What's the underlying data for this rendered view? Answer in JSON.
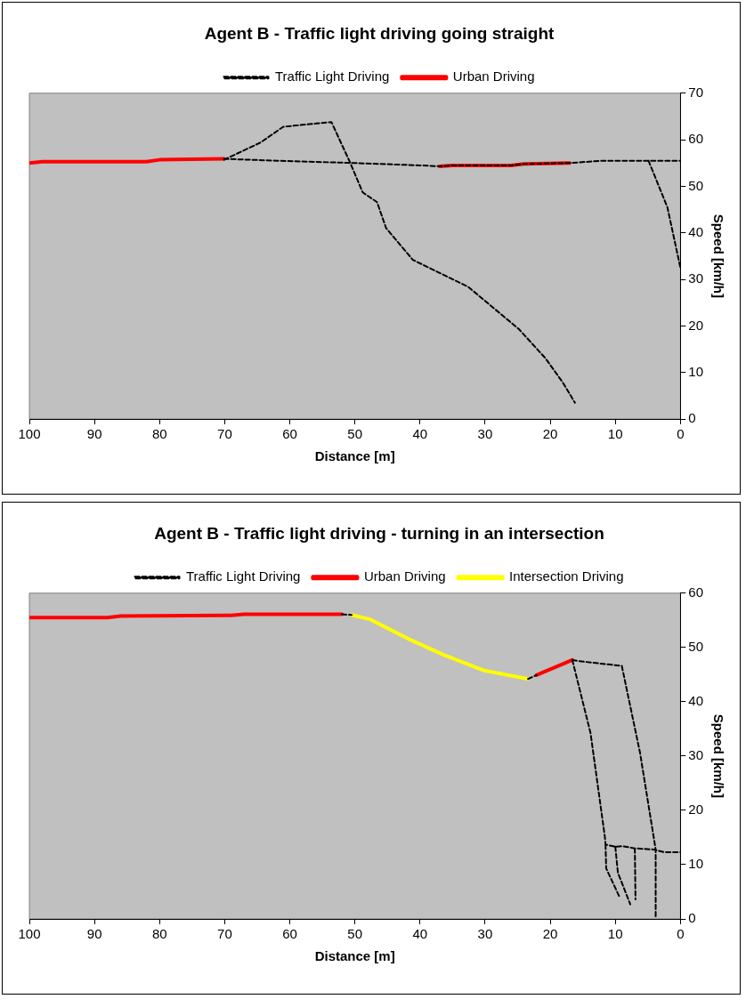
{
  "chart_data": [
    {
      "type": "line",
      "title": "Agent B - Traffic light driving going straight",
      "xlabel": "Distance [m]",
      "ylabel": "Speed [km/h]",
      "legend": "top",
      "marker": "none",
      "xlim": [
        100,
        0
      ],
      "xticks": [
        100,
        90,
        80,
        70,
        60,
        50,
        40,
        30,
        20,
        10,
        0
      ],
      "ylim": [
        0,
        70
      ],
      "yticks": [
        0,
        10,
        20,
        30,
        40,
        50,
        60,
        70
      ],
      "series": [
        {
          "name": "Traffic Light Driving",
          "color": "#000000",
          "line_style": "dashed",
          "x": [
            70.1,
            62,
            50,
            40,
            37,
            35,
            26,
            24,
            17,
            12,
            0,
            null,
            70.1,
            64.5,
            61,
            53.6,
            50.8,
            48.8,
            46.6,
            45.2,
            41.1,
            32.6,
            24.8,
            20.7,
            18,
            16.2,
            null,
            4.9,
            2,
            0
          ],
          "values": [
            55.9,
            55.5,
            55,
            54.5,
            54.3,
            54.5,
            54.5,
            54.8,
            55,
            55.5,
            55.5,
            null,
            55.7,
            59.4,
            62.8,
            63.8,
            55.3,
            48.7,
            46.6,
            41,
            34.2,
            28.4,
            19.3,
            13,
            7.7,
            3.5,
            null,
            55.5,
            45.5,
            32.5
          ]
        },
        {
          "name": "Urban Driving",
          "color": "#ff0000",
          "line_style": "solid",
          "x": [
            100,
            98,
            82,
            80,
            70.1,
            null,
            37,
            35,
            26,
            24,
            17
          ],
          "values": [
            55,
            55.3,
            55.3,
            55.7,
            55.9,
            null,
            54.3,
            54.5,
            54.5,
            54.8,
            55
          ]
        }
      ]
    },
    {
      "type": "line",
      "title": "Agent B - Traffic light driving - turning in an intersection",
      "xlabel": "Distance [m]",
      "ylabel": "Speed [km/h]",
      "legend": "top",
      "marker": "none",
      "xlim": [
        100,
        0
      ],
      "xticks": [
        100,
        90,
        80,
        70,
        60,
        50,
        40,
        30,
        20,
        10,
        0
      ],
      "ylim": [
        0,
        60
      ],
      "yticks": [
        0,
        10,
        20,
        30,
        40,
        50,
        60
      ],
      "series": [
        {
          "name": "Traffic Light Driving",
          "color": "#000000",
          "line_style": "dashed",
          "x": [
            52,
            50.5,
            null,
            23.4,
            22.1,
            null,
            16.6,
            15.7,
            9,
            6.2,
            3.8,
            3.8,
            null,
            16.6,
            13.8,
            11.6,
            11.5,
            10,
            8.9,
            7,
            4.2,
            2.5,
            0,
            null,
            11.5,
            11.4,
            9.3,
            null,
            10,
            9.6,
            7.7,
            null,
            7,
            6.9
          ],
          "values": [
            56.1,
            56,
            null,
            44.2,
            44.9,
            null,
            47.7,
            47.5,
            46.6,
            30.6,
            12.8,
            0,
            null,
            47.7,
            34.2,
            15.1,
            13.7,
            13.3,
            13.4,
            13,
            12.8,
            12.3,
            12.3,
            null,
            13.7,
            9.3,
            3.9,
            null,
            13.3,
            8.5,
            2.7,
            null,
            13,
            3.6
          ]
        },
        {
          "name": "Urban Driving",
          "color": "#ff0000",
          "line_style": "solid",
          "x": [
            100,
            88,
            86,
            69,
            67,
            52,
            null,
            22.1,
            16.6
          ],
          "values": [
            55.5,
            55.5,
            55.8,
            55.9,
            56.1,
            56.1,
            null,
            44.9,
            47.7
          ]
        },
        {
          "name": "Intersection Driving",
          "color": "#ffff00",
          "line_style": "solid",
          "x": [
            50.5,
            47.7,
            41.8,
            36.3,
            30.3,
            23.4
          ],
          "values": [
            56,
            55.2,
            51.6,
            48.6,
            45.8,
            44.2
          ]
        }
      ]
    }
  ]
}
